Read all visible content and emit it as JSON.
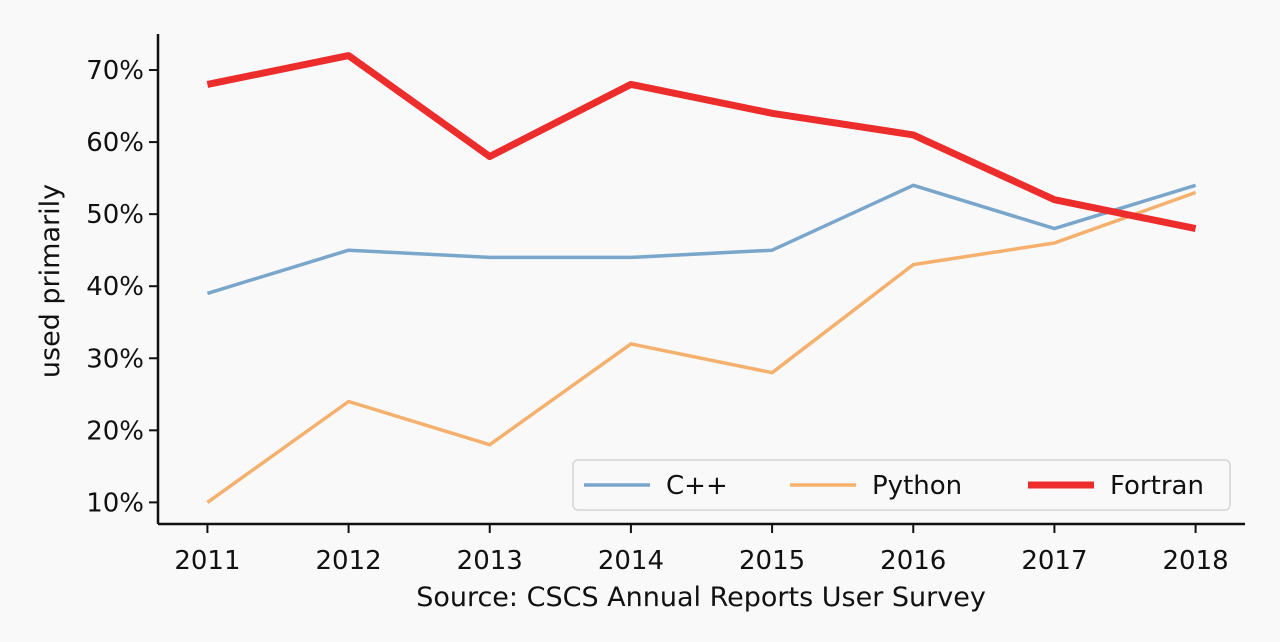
{
  "chart_data": {
    "type": "line",
    "title": "",
    "xlabel": "Source: CSCS Annual Reports User Survey",
    "ylabel": "used primarily",
    "x": [
      2011,
      2012,
      2013,
      2014,
      2015,
      2016,
      2017,
      2018
    ],
    "x_tick_labels": [
      "2011",
      "2012",
      "2013",
      "2014",
      "2015",
      "2016",
      "2017",
      "2018"
    ],
    "y_ticks": [
      10,
      20,
      30,
      40,
      50,
      60,
      70
    ],
    "y_tick_labels": [
      "10%",
      "20%",
      "30%",
      "40%",
      "50%",
      "60%",
      "70%"
    ],
    "ylim": [
      7,
      75
    ],
    "xlim": [
      2010.65,
      2018.35
    ],
    "grid": false,
    "legend_position": "bottom-right",
    "legend_layout": "horizontal",
    "series": [
      {
        "name": "C++",
        "color": "#7aa6cb",
        "line_width": "thin",
        "values": [
          39,
          45,
          44,
          44,
          45,
          54,
          48,
          54
        ]
      },
      {
        "name": "Python",
        "color": "#f5b06e",
        "line_width": "thin",
        "values": [
          10,
          24,
          18,
          32,
          28,
          43,
          46,
          53
        ]
      },
      {
        "name": "Fortran",
        "color": "#ec2d2b",
        "line_width": "thick",
        "values": [
          68,
          72,
          58,
          68,
          64,
          61,
          52,
          48
        ]
      }
    ]
  }
}
